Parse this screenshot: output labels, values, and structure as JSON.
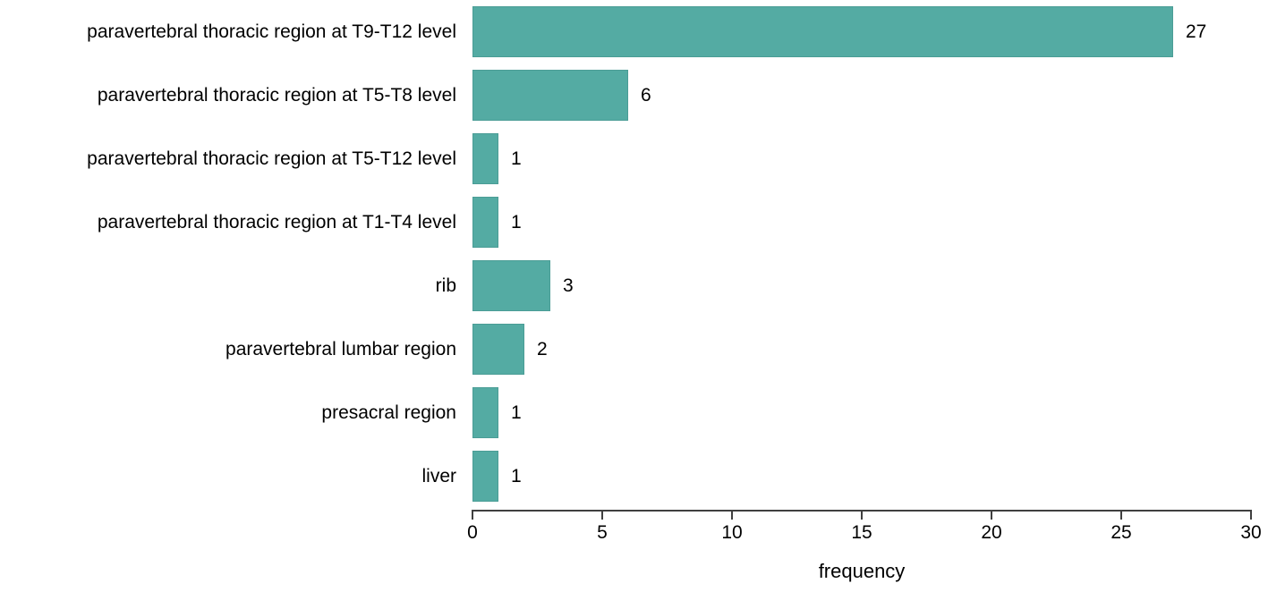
{
  "chart_data": {
    "type": "bar",
    "orientation": "horizontal",
    "categories": [
      "paravertebral thoracic region at T9-T12 level",
      "paravertebral thoracic region at T5-T8 level",
      "paravertebral thoracic region at T5-T12 level",
      "paravertebral thoracic region at T1-T4 level",
      "rib",
      "paravertebral lumbar region",
      "presacral region",
      "liver"
    ],
    "values": [
      27,
      6,
      1,
      1,
      3,
      2,
      1,
      1
    ],
    "title": "",
    "xlabel": "frequency",
    "ylabel": "",
    "xlim": [
      0,
      30
    ],
    "x_ticks": [
      0,
      5,
      10,
      15,
      20,
      25,
      30
    ],
    "value_labels_shown": true,
    "grid": false,
    "legend": "none",
    "colors": {
      "bar_fill": "#54aba3",
      "bar_border": "#4b9d96",
      "axis": "#404040",
      "text": "#000000",
      "background": "#ffffff"
    }
  }
}
